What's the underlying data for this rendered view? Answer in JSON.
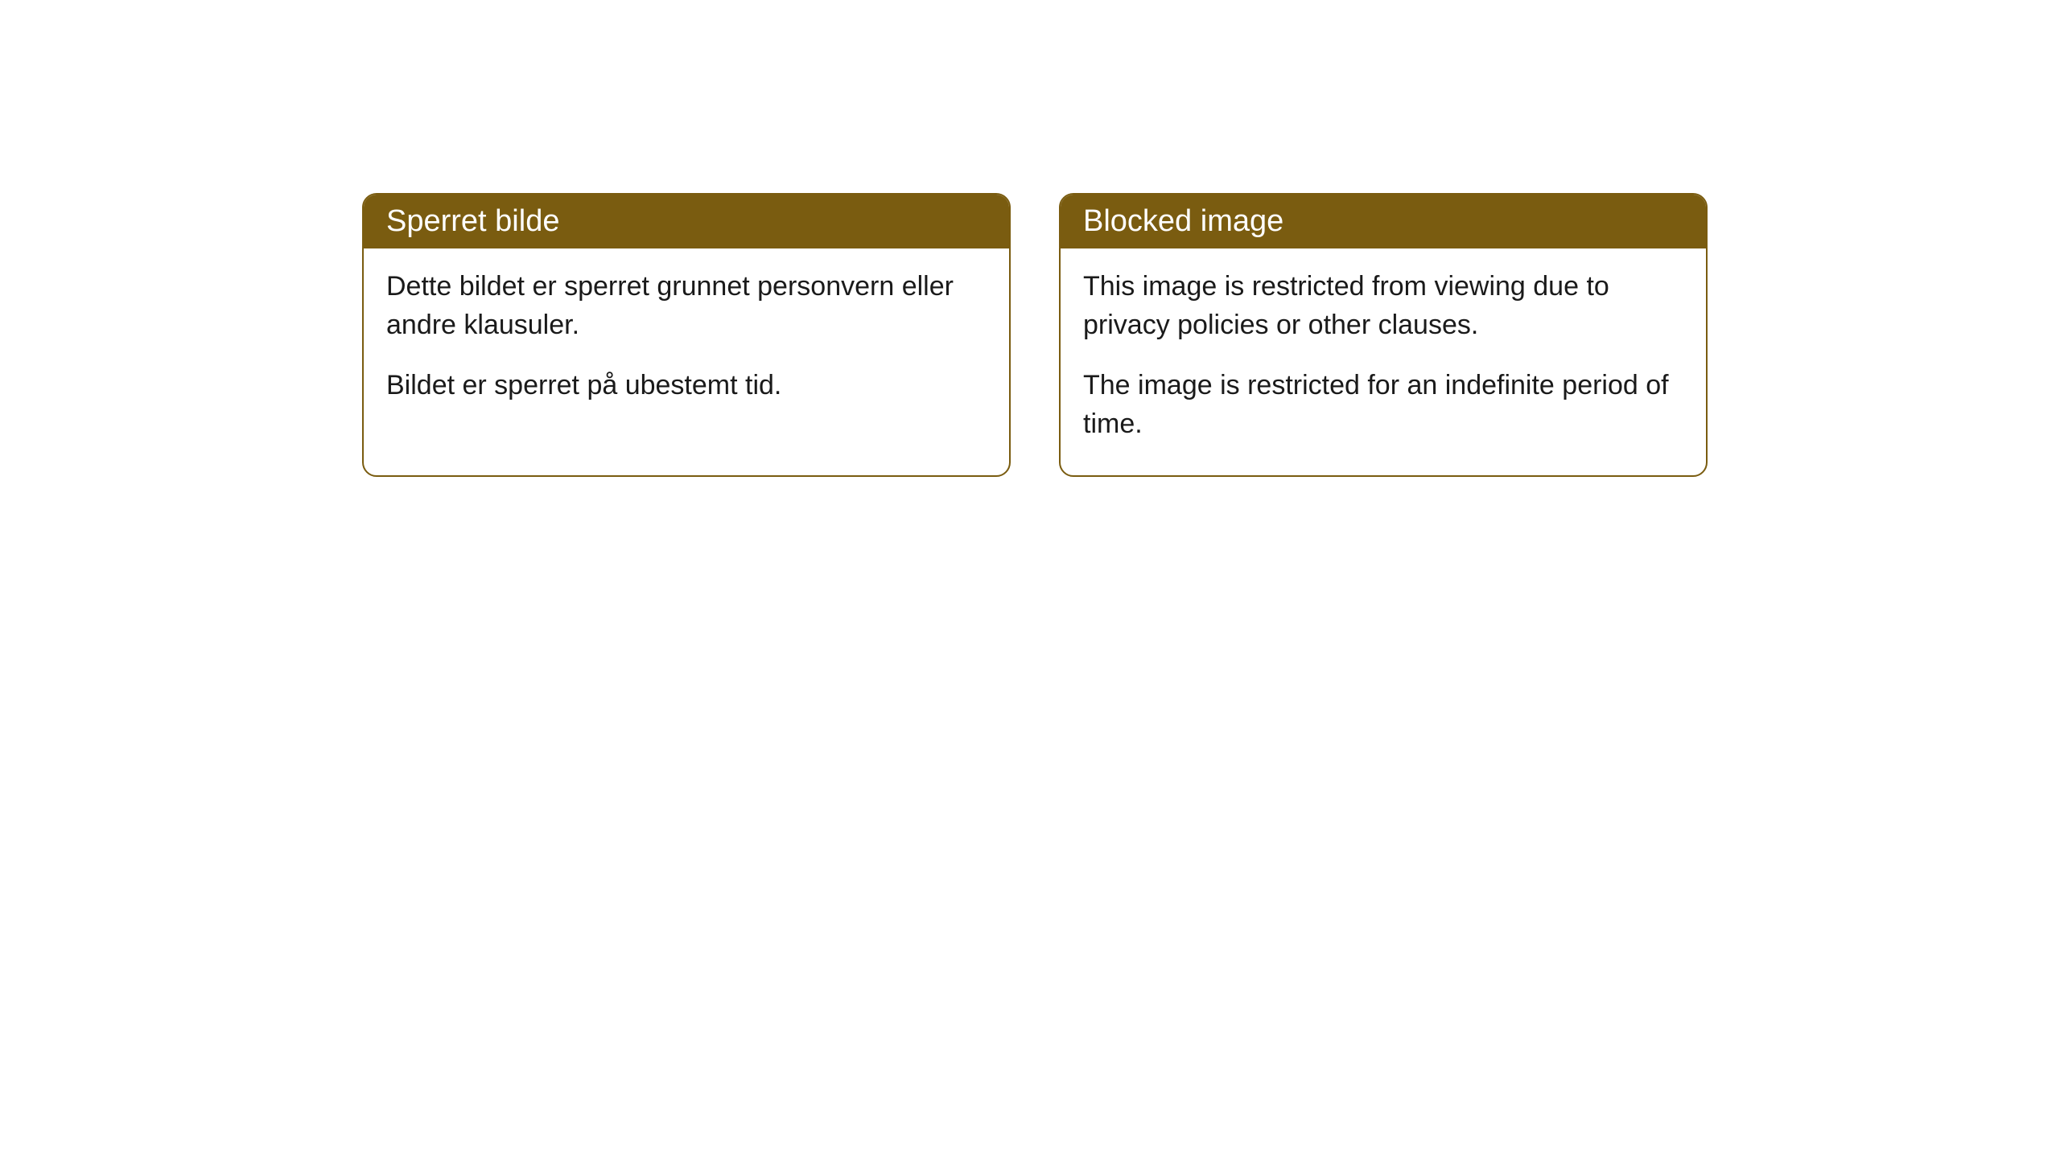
{
  "cards": [
    {
      "title": "Sperret bilde",
      "paragraph1": "Dette bildet er sperret grunnet personvern eller andre klausuler.",
      "paragraph2": "Bildet er sperret på ubestemt tid."
    },
    {
      "title": "Blocked image",
      "paragraph1": "This image is restricted from viewing due to privacy policies or other clauses.",
      "paragraph2": "The image is restricted for an indefinite period of time."
    }
  ],
  "style": {
    "header_bg_color": "#7a5c10",
    "header_text_color": "#ffffff",
    "border_color": "#7a5c10",
    "body_text_color": "#1a1a1a",
    "background_color": "#ffffff",
    "border_radius": 18,
    "title_fontsize": 38,
    "body_fontsize": 34
  }
}
